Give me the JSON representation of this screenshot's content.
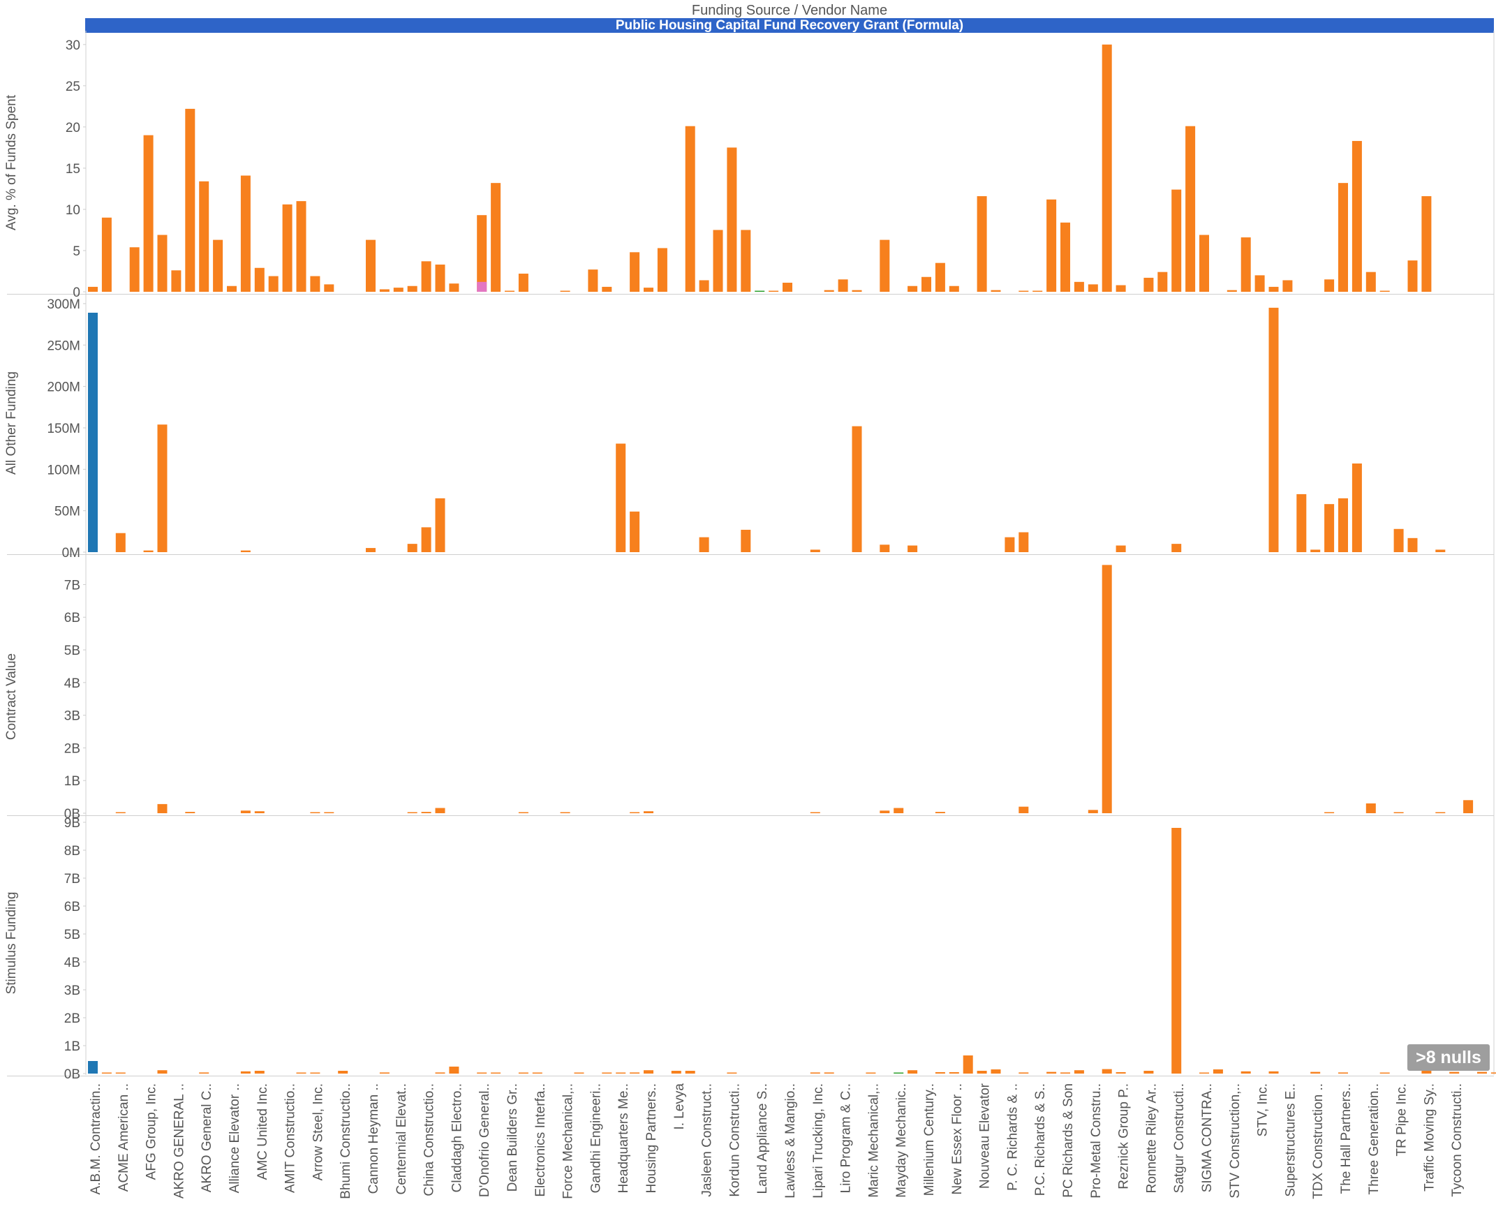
{
  "header": {
    "title": "Funding Source  /  Vendor Name",
    "banner": "Public Housing Capital Fund Recovery Grant (Formula)"
  },
  "nulls_indicator": ">8 nulls",
  "colors": {
    "primary": "#f7801d",
    "blue": "#1f77b4",
    "pink": "#e377c2",
    "green": "#2ca02c",
    "banner": "#2e64c8"
  },
  "vendors": [
    "A.B.M. Contractin..",
    "ACME American ..",
    "AFG Group, Inc.",
    "AKRO GENERAL ..",
    "AKRO General C..",
    "Alliance Elevator ..",
    "AMC United Inc.",
    "AMIT Constructio..",
    "Arrow Steel, Inc.",
    "Bhumi Constructio..",
    "Cannon Heyman ..",
    "Centennial Elevat..",
    "China Constructio..",
    "Claddagh Electro..",
    "D'Onofrio General..",
    "Dean Builders Gr..",
    "Electronics Interfa..",
    "Force Mechanical,..",
    "Gandhi Engineeri..",
    "Headquarters Me..",
    "Housing Partners..",
    "I. Levya",
    "Jasleen Construct..",
    "Kordun Constructi..",
    "Land Appliance S..",
    "Lawless & Mangio..",
    "Lipari Trucking, Inc.",
    "Liro Program & C..",
    "Maric Mechanical,..",
    "Mayday Mechanic..",
    "Millenium Century..",
    "New Essex Floor ..",
    "Nouveau Elevator",
    "P. C. Richards & ..",
    "P.C. Richards & S..",
    "PC Richards & Son",
    "Pro-Metal Constru..",
    "Reznick Group P..",
    "Ronnette Riley Ar..",
    "Satgur Constructi..",
    "SIGMA CONTRA..",
    "STV Construction,..",
    "STV, Inc.",
    "Superstructures E..",
    "TDX Construction ..",
    "The Hall Partners..",
    "Three Generation..",
    "TR Pipe Inc.",
    "Traffic Moving Sy..",
    "Tycoon Constructi.."
  ],
  "chart_data": [
    {
      "type": "bar",
      "ylabel": "Avg. % of Funds Spent",
      "ylim": [
        0,
        31
      ],
      "ticks": [
        0,
        5,
        10,
        15,
        20,
        25,
        30
      ],
      "tick_labels": [
        "0",
        "5",
        "10",
        "15",
        "20",
        "25",
        "30"
      ],
      "bars": [
        {
          "v": 0.6,
          "c": "orange"
        },
        {
          "v": 9.0,
          "c": "orange"
        },
        null,
        {
          "v": 5.4,
          "c": "orange"
        },
        {
          "v": 19.0,
          "c": "orange"
        },
        {
          "v": 6.9,
          "c": "orange"
        },
        {
          "v": 2.6,
          "c": "orange"
        },
        {
          "v": 22.2,
          "c": "orange"
        },
        {
          "v": 13.4,
          "c": "orange"
        },
        {
          "v": 6.3,
          "c": "orange"
        },
        {
          "v": 0.7,
          "c": "orange"
        },
        {
          "v": 14.1,
          "c": "orange"
        },
        {
          "v": 2.9,
          "c": "orange"
        },
        {
          "v": 1.9,
          "c": "orange"
        },
        {
          "v": 10.6,
          "c": "orange"
        },
        {
          "v": 11.0,
          "c": "orange"
        },
        {
          "v": 1.9,
          "c": "orange"
        },
        {
          "v": 0.9,
          "c": "orange"
        },
        null,
        null,
        {
          "v": 6.3,
          "c": "orange"
        },
        {
          "v": 0.3,
          "c": "orange"
        },
        {
          "v": 0.5,
          "c": "orange"
        },
        {
          "v": 0.7,
          "c": "orange"
        },
        {
          "v": 3.7,
          "c": "orange"
        },
        {
          "v": 3.3,
          "c": "orange"
        },
        {
          "v": 1.0,
          "c": "orange"
        },
        null,
        {
          "v": 9.3,
          "c": "orange",
          "pink": 1.2
        },
        {
          "v": 13.2,
          "c": "orange"
        },
        {
          "v": 0.1,
          "c": "orange"
        },
        {
          "v": 2.2,
          "c": "orange"
        },
        null,
        null,
        {
          "v": 0.1,
          "c": "orange"
        },
        null,
        {
          "v": 2.7,
          "c": "orange"
        },
        {
          "v": 0.6,
          "c": "orange"
        },
        null,
        {
          "v": 4.8,
          "c": "orange"
        },
        {
          "v": 0.5,
          "c": "orange"
        },
        {
          "v": 5.3,
          "c": "orange"
        },
        null,
        {
          "v": 20.1,
          "c": "orange"
        },
        {
          "v": 1.4,
          "c": "orange"
        },
        {
          "v": 7.5,
          "c": "orange"
        },
        {
          "v": 17.5,
          "c": "orange"
        },
        {
          "v": 7.5,
          "c": "orange"
        },
        {
          "v": 0.1,
          "c": "green"
        },
        {
          "v": 0.1,
          "c": "orange"
        },
        {
          "v": 1.1,
          "c": "orange"
        },
        null,
        null,
        {
          "v": 0.2,
          "c": "orange"
        },
        {
          "v": 1.5,
          "c": "orange"
        },
        {
          "v": 0.2,
          "c": "orange"
        },
        null,
        {
          "v": 6.3,
          "c": "orange"
        },
        null,
        {
          "v": 0.7,
          "c": "orange"
        },
        {
          "v": 1.8,
          "c": "orange"
        },
        {
          "v": 3.5,
          "c": "orange"
        },
        {
          "v": 0.7,
          "c": "orange"
        },
        null,
        {
          "v": 11.6,
          "c": "orange"
        },
        {
          "v": 0.2,
          "c": "orange"
        },
        null,
        {
          "v": 0.1,
          "c": "orange"
        },
        {
          "v": 0.1,
          "c": "orange"
        },
        {
          "v": 11.2,
          "c": "orange"
        },
        {
          "v": 8.4,
          "c": "orange"
        },
        {
          "v": 1.2,
          "c": "orange"
        },
        {
          "v": 0.9,
          "c": "orange"
        },
        {
          "v": 30.0,
          "c": "orange"
        },
        {
          "v": 0.8,
          "c": "orange"
        },
        null,
        {
          "v": 1.7,
          "c": "orange"
        },
        {
          "v": 2.4,
          "c": "orange"
        },
        {
          "v": 12.4,
          "c": "orange"
        },
        {
          "v": 20.1,
          "c": "orange"
        },
        {
          "v": 6.9,
          "c": "orange"
        },
        null,
        {
          "v": 0.2,
          "c": "orange"
        },
        {
          "v": 6.6,
          "c": "orange"
        },
        {
          "v": 2.0,
          "c": "orange"
        },
        {
          "v": 0.6,
          "c": "orange"
        },
        {
          "v": 1.4,
          "c": "orange"
        },
        null,
        null,
        {
          "v": 1.5,
          "c": "orange"
        },
        {
          "v": 13.2,
          "c": "orange"
        },
        {
          "v": 18.3,
          "c": "orange"
        },
        {
          "v": 2.4,
          "c": "orange"
        },
        {
          "v": 0.1,
          "c": "orange"
        },
        null,
        {
          "v": 3.8,
          "c": "orange"
        },
        {
          "v": 11.6,
          "c": "orange"
        }
      ]
    },
    {
      "type": "bar",
      "ylabel": "All Other Funding",
      "ylim": [
        0,
        305
      ],
      "ticks": [
        0,
        50,
        100,
        150,
        200,
        250,
        300
      ],
      "tick_labels": [
        "0M",
        "50M",
        "100M",
        "150M",
        "200M",
        "250M",
        "300M"
      ],
      "bars": [
        {
          "v": 289,
          "c": "blue"
        },
        null,
        {
          "v": 23,
          "c": "orange"
        },
        null,
        {
          "v": 2,
          "c": "orange"
        },
        {
          "v": 154,
          "c": "orange"
        },
        null,
        null,
        null,
        null,
        null,
        {
          "v": 2,
          "c": "orange"
        },
        null,
        null,
        null,
        null,
        null,
        null,
        null,
        null,
        {
          "v": 5,
          "c": "orange"
        },
        null,
        null,
        {
          "v": 10,
          "c": "orange"
        },
        {
          "v": 30,
          "c": "orange"
        },
        {
          "v": 65,
          "c": "orange"
        },
        null,
        null,
        null,
        null,
        null,
        null,
        null,
        null,
        null,
        null,
        null,
        null,
        {
          "v": 131,
          "c": "orange"
        },
        {
          "v": 49,
          "c": "orange"
        },
        null,
        null,
        null,
        null,
        {
          "v": 18,
          "c": "orange"
        },
        null,
        null,
        {
          "v": 27,
          "c": "orange"
        },
        null,
        null,
        null,
        null,
        {
          "v": 3,
          "c": "orange"
        },
        null,
        null,
        {
          "v": 152,
          "c": "orange"
        },
        null,
        {
          "v": 9,
          "c": "orange"
        },
        null,
        {
          "v": 8,
          "c": "orange"
        },
        null,
        null,
        null,
        null,
        null,
        null,
        {
          "v": 18,
          "c": "orange"
        },
        {
          "v": 24,
          "c": "orange"
        },
        null,
        null,
        null,
        null,
        null,
        null,
        {
          "v": 8,
          "c": "orange"
        },
        null,
        null,
        null,
        {
          "v": 10,
          "c": "orange"
        },
        null,
        null,
        null,
        null,
        null,
        null,
        {
          "v": 295,
          "c": "orange"
        },
        null,
        {
          "v": 70,
          "c": "orange"
        },
        {
          "v": 3,
          "c": "orange"
        },
        {
          "v": 58,
          "c": "orange"
        },
        {
          "v": 65,
          "c": "orange"
        },
        {
          "v": 107,
          "c": "orange"
        },
        null,
        null,
        {
          "v": 28,
          "c": "orange"
        },
        {
          "v": 17,
          "c": "orange"
        },
        null,
        {
          "v": 3,
          "c": "orange"
        }
      ]
    },
    {
      "type": "bar",
      "ylabel": "Contract Value",
      "ylim": [
        0,
        7.8
      ],
      "ticks": [
        0,
        1,
        2,
        3,
        4,
        5,
        6,
        7
      ],
      "tick_labels": [
        "0B",
        "1B",
        "2B",
        "3B",
        "4B",
        "5B",
        "6B",
        "7B"
      ],
      "bars": [
        null,
        null,
        {
          "v": 0.03,
          "c": "orange"
        },
        null,
        null,
        {
          "v": 0.28,
          "c": "orange"
        },
        null,
        {
          "v": 0.04,
          "c": "orange"
        },
        null,
        null,
        null,
        {
          "v": 0.08,
          "c": "orange"
        },
        {
          "v": 0.06,
          "c": "orange"
        },
        null,
        null,
        null,
        {
          "v": 0.03,
          "c": "orange"
        },
        {
          "v": 0.03,
          "c": "orange"
        },
        null,
        null,
        null,
        null,
        null,
        {
          "v": 0.03,
          "c": "orange"
        },
        {
          "v": 0.04,
          "c": "orange"
        },
        {
          "v": 0.16,
          "c": "orange"
        },
        null,
        null,
        null,
        null,
        null,
        {
          "v": 0.03,
          "c": "orange"
        },
        null,
        null,
        {
          "v": 0.03,
          "c": "orange"
        },
        null,
        null,
        null,
        null,
        {
          "v": 0.03,
          "c": "orange"
        },
        {
          "v": 0.06,
          "c": "orange"
        },
        null,
        null,
        null,
        null,
        null,
        null,
        null,
        null,
        null,
        null,
        null,
        {
          "v": 0.03,
          "c": "orange"
        },
        null,
        null,
        null,
        null,
        {
          "v": 0.08,
          "c": "orange"
        },
        {
          "v": 0.16,
          "c": "orange"
        },
        null,
        null,
        {
          "v": 0.04,
          "c": "orange"
        },
        null,
        null,
        null,
        null,
        null,
        {
          "v": 0.2,
          "c": "orange"
        },
        null,
        null,
        null,
        null,
        {
          "v": 0.1,
          "c": "orange"
        },
        {
          "v": 7.6,
          "c": "orange"
        },
        null,
        null,
        null,
        null,
        null,
        null,
        null,
        null,
        null,
        null,
        null,
        null,
        null,
        null,
        null,
        {
          "v": 0.03,
          "c": "orange"
        },
        null,
        null,
        {
          "v": 0.3,
          "c": "orange"
        },
        null,
        {
          "v": 0.03,
          "c": "orange"
        },
        null,
        null,
        {
          "v": 0.03,
          "c": "orange"
        },
        null,
        {
          "v": 0.4,
          "c": "orange"
        },
        null,
        null,
        null,
        null,
        null,
        null,
        null,
        {
          "v": 0.03,
          "c": "orange"
        },
        null,
        null,
        {
          "v": 0.03,
          "c": "orange"
        },
        {
          "v": 0.05,
          "c": "orange"
        }
      ]
    },
    {
      "type": "bar",
      "ylabel": "Stimulus Funding",
      "ylim": [
        0,
        9.1
      ],
      "ticks": [
        0,
        1,
        2,
        3,
        4,
        5,
        6,
        7,
        8,
        9
      ],
      "tick_labels": [
        "0B",
        "1B",
        "2B",
        "3B",
        "4B",
        "5B",
        "6B",
        "7B",
        "8B",
        "9B"
      ],
      "bars": [
        {
          "v": 0.45,
          "c": "blue"
        },
        {
          "v": 0.02,
          "c": "orange"
        },
        {
          "v": 0.02,
          "c": "orange"
        },
        null,
        null,
        {
          "v": 0.12,
          "c": "orange"
        },
        null,
        null,
        {
          "v": 0.04,
          "c": "orange"
        },
        null,
        null,
        {
          "v": 0.08,
          "c": "orange"
        },
        {
          "v": 0.1,
          "c": "orange"
        },
        null,
        null,
        {
          "v": 0.03,
          "c": "orange"
        },
        {
          "v": 0.03,
          "c": "orange"
        },
        null,
        {
          "v": 0.1,
          "c": "orange"
        },
        null,
        null,
        {
          "v": 0.04,
          "c": "orange"
        },
        null,
        null,
        null,
        {
          "v": 0.04,
          "c": "orange"
        },
        {
          "v": 0.25,
          "c": "orange"
        },
        null,
        {
          "v": 0.02,
          "c": "orange"
        },
        {
          "v": 0.02,
          "c": "orange"
        },
        null,
        {
          "v": 0.02,
          "c": "orange"
        },
        {
          "v": 0.02,
          "c": "orange"
        },
        null,
        null,
        {
          "v": 0.02,
          "c": "orange"
        },
        null,
        {
          "v": 0.02,
          "c": "orange"
        },
        {
          "v": 0.02,
          "c": "orange"
        },
        {
          "v": 0.04,
          "c": "orange"
        },
        {
          "v": 0.12,
          "c": "orange"
        },
        null,
        {
          "v": 0.1,
          "c": "orange"
        },
        {
          "v": 0.1,
          "c": "orange"
        },
        null,
        null,
        {
          "v": 0.03,
          "c": "orange"
        },
        null,
        null,
        null,
        null,
        null,
        {
          "v": 0.04,
          "c": "orange"
        },
        {
          "v": 0.04,
          "c": "orange"
        },
        null,
        null,
        {
          "v": 0.03,
          "c": "orange"
        },
        null,
        {
          "v": 0.02,
          "c": "green"
        },
        {
          "v": 0.12,
          "c": "orange"
        },
        null,
        {
          "v": 0.05,
          "c": "orange"
        },
        {
          "v": 0.05,
          "c": "orange"
        },
        {
          "v": 0.65,
          "c": "orange"
        },
        {
          "v": 0.1,
          "c": "orange"
        },
        {
          "v": 0.15,
          "c": "orange"
        },
        null,
        {
          "v": 0.04,
          "c": "orange"
        },
        null,
        {
          "v": 0.06,
          "c": "orange"
        },
        {
          "v": 0.04,
          "c": "orange"
        },
        {
          "v": 0.12,
          "c": "orange"
        },
        null,
        {
          "v": 0.16,
          "c": "orange"
        },
        {
          "v": 0.05,
          "c": "orange"
        },
        null,
        {
          "v": 0.1,
          "c": "orange"
        },
        null,
        {
          "v": 8.8,
          "c": "orange"
        },
        null,
        {
          "v": 0.03,
          "c": "orange"
        },
        {
          "v": 0.15,
          "c": "orange"
        },
        null,
        {
          "v": 0.08,
          "c": "orange"
        },
        null,
        {
          "v": 0.08,
          "c": "orange"
        },
        null,
        null,
        {
          "v": 0.06,
          "c": "orange"
        },
        null,
        {
          "v": 0.04,
          "c": "orange"
        },
        null,
        null,
        {
          "v": 0.03,
          "c": "orange"
        },
        null,
        null,
        {
          "v": 0.25,
          "c": "orange"
        },
        null,
        {
          "v": 0.06,
          "c": "orange"
        },
        null,
        {
          "v": 0.06,
          "c": "orange"
        },
        {
          "v": 0.04,
          "c": "orange"
        },
        {
          "v": 0.4,
          "c": "orange"
        },
        null,
        {
          "v": 0.04,
          "c": "orange"
        },
        {
          "v": 0.04,
          "c": "orange"
        },
        null,
        null,
        {
          "v": 0.03,
          "c": "orange"
        },
        null,
        null,
        null,
        {
          "v": 0.04,
          "c": "orange"
        },
        {
          "v": 0.05,
          "c": "orange"
        }
      ]
    }
  ]
}
